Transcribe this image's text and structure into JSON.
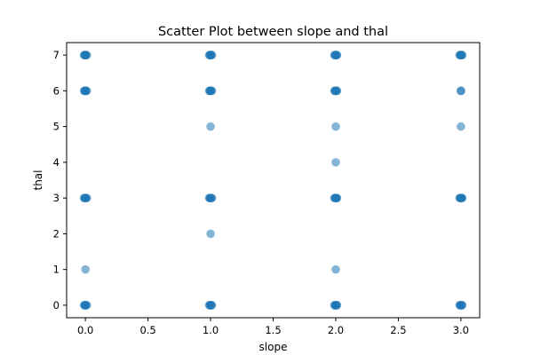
{
  "chart_data": {
    "type": "scatter",
    "title": "Scatter Plot between slope and thal",
    "xlabel": "slope",
    "ylabel": "thal",
    "xlim": [
      -0.15,
      3.15
    ],
    "ylim": [
      -0.35,
      7.35
    ],
    "x_ticks": [
      0.0,
      0.5,
      1.0,
      1.5,
      2.0,
      2.5,
      3.0
    ],
    "x_tick_labels": [
      "0.0",
      "0.5",
      "1.0",
      "1.5",
      "2.0",
      "2.5",
      "3.0"
    ],
    "y_ticks": [
      0,
      1,
      2,
      3,
      4,
      5,
      6,
      7
    ],
    "y_tick_labels": [
      "0",
      "1",
      "2",
      "3",
      "4",
      "5",
      "6",
      "7"
    ],
    "grid": false,
    "legend": "none",
    "marker_color": "#1f77b4",
    "marker_alpha": 0.55,
    "points": [
      {
        "x": 0,
        "y": 0,
        "overlap": "dense"
      },
      {
        "x": 0,
        "y": 1,
        "overlap": "single"
      },
      {
        "x": 0,
        "y": 3,
        "overlap": "dense"
      },
      {
        "x": 0,
        "y": 6,
        "overlap": "dense"
      },
      {
        "x": 0,
        "y": 7,
        "overlap": "dense"
      },
      {
        "x": 1,
        "y": 0,
        "overlap": "dense"
      },
      {
        "x": 1,
        "y": 2,
        "overlap": "single"
      },
      {
        "x": 1,
        "y": 3,
        "overlap": "dense"
      },
      {
        "x": 1,
        "y": 5,
        "overlap": "single"
      },
      {
        "x": 1,
        "y": 6,
        "overlap": "dense"
      },
      {
        "x": 1,
        "y": 7,
        "overlap": "dense"
      },
      {
        "x": 2,
        "y": 0,
        "overlap": "dense"
      },
      {
        "x": 2,
        "y": 1,
        "overlap": "single"
      },
      {
        "x": 2,
        "y": 3,
        "overlap": "dense"
      },
      {
        "x": 2,
        "y": 4,
        "overlap": "single"
      },
      {
        "x": 2,
        "y": 5,
        "overlap": "single"
      },
      {
        "x": 2,
        "y": 6,
        "overlap": "dense"
      },
      {
        "x": 2,
        "y": 7,
        "overlap": "dense"
      },
      {
        "x": 3,
        "y": 0,
        "overlap": "dense"
      },
      {
        "x": 3,
        "y": 3,
        "overlap": "dense"
      },
      {
        "x": 3,
        "y": 5,
        "overlap": "single"
      },
      {
        "x": 3,
        "y": 6,
        "overlap": "few"
      },
      {
        "x": 3,
        "y": 7,
        "overlap": "dense"
      }
    ]
  }
}
